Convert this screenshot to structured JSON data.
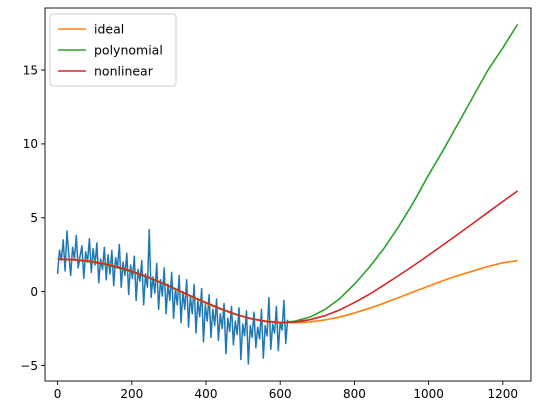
{
  "chart_data": {
    "type": "line",
    "title": "",
    "xlabel": "",
    "ylabel": "",
    "xlim": [
      -34,
      1276
    ],
    "ylim": [
      -6.05,
      19.2
    ],
    "xticks": [
      0,
      200,
      400,
      600,
      800,
      1000,
      1200
    ],
    "yticks": [
      -5,
      0,
      5,
      10,
      15
    ],
    "grid": false,
    "legend_position": "top-left",
    "noisy_series": {
      "color": "#1f77b4",
      "x_range": [
        0,
        620
      ],
      "values": [
        1.2,
        2.8,
        2.1,
        3.5,
        1.4,
        4.1,
        2.5,
        1.1,
        3.0,
        2.2,
        3.8,
        1.6,
        2.4,
        3.1,
        0.9,
        2.7,
        2.0,
        3.6,
        1.3,
        2.9,
        1.8,
        3.3,
        0.6,
        2.2,
        1.5,
        3.0,
        0.8,
        2.5,
        1.2,
        2.8,
        0.4,
        2.3,
        1.6,
        3.2,
        0.3,
        2.0,
        1.1,
        2.6,
        -0.2,
        1.8,
        0.9,
        2.4,
        -0.6,
        1.5,
        0.7,
        2.1,
        -0.9,
        1.2,
        0.3,
        4.2,
        -0.4,
        1.0,
        -0.1,
        1.9,
        -1.2,
        0.8,
        -0.3,
        1.6,
        -1.5,
        0.5,
        -0.6,
        1.3,
        -1.8,
        0.2,
        -0.9,
        1.1,
        -2.1,
        0.0,
        -1.2,
        0.8,
        -2.4,
        -0.3,
        -1.5,
        0.5,
        -2.8,
        -0.6,
        -1.7,
        0.2,
        -3.4,
        -0.9,
        -2.0,
        -0.2,
        -3.1,
        -1.2,
        -2.3,
        -0.5,
        -3.3,
        -1.5,
        -2.5,
        -0.8,
        -4.2,
        -1.8,
        -2.7,
        -1.0,
        -3.6,
        -2.0,
        -2.9,
        -1.1,
        -4.6,
        -2.2,
        -3.0,
        -1.3,
        -4.9,
        -2.3,
        -3.1,
        -1.4,
        -3.8,
        -2.4,
        -3.2,
        -1.2,
        -4.5,
        -2.3,
        -3.0,
        -0.4,
        -3.9,
        -2.2,
        -2.8,
        -1.0,
        -4.0,
        -2.1,
        -2.6,
        -0.6,
        -3.5,
        -1.9
      ]
    },
    "x": [
      0,
      40,
      80,
      120,
      160,
      200,
      240,
      280,
      320,
      360,
      400,
      440,
      480,
      520,
      560,
      600,
      640,
      680,
      720,
      760,
      800,
      840,
      880,
      920,
      960,
      1000,
      1040,
      1080,
      1120,
      1160,
      1200,
      1240
    ],
    "series": [
      {
        "name": "ideal",
        "color": "#ff7f0e",
        "values": [
          2.2,
          2.18,
          2.12,
          1.95,
          1.7,
          1.4,
          1.02,
          0.6,
          0.12,
          -0.35,
          -0.8,
          -1.2,
          -1.55,
          -1.82,
          -1.98,
          -2.08,
          -2.1,
          -2.05,
          -1.92,
          -1.72,
          -1.45,
          -1.13,
          -0.78,
          -0.4,
          -0.01,
          0.37,
          0.75,
          1.09,
          1.4,
          1.7,
          1.95,
          2.1
        ]
      },
      {
        "name": "polynomial",
        "color": "#2ca02c",
        "values": [
          2.2,
          2.15,
          2.05,
          1.87,
          1.63,
          1.33,
          0.98,
          0.58,
          0.14,
          -0.31,
          -0.75,
          -1.18,
          -1.55,
          -1.83,
          -2.02,
          -2.1,
          -2.0,
          -1.72,
          -1.22,
          -0.48,
          0.5,
          1.64,
          2.94,
          4.43,
          6.08,
          7.9,
          9.6,
          11.4,
          13.2,
          15.0,
          16.5,
          18.1
        ]
      },
      {
        "name": "nonlinear",
        "color": "#d62728",
        "values": [
          2.2,
          2.16,
          2.08,
          1.92,
          1.68,
          1.38,
          1.02,
          0.61,
          0.16,
          -0.3,
          -0.74,
          -1.16,
          -1.53,
          -1.82,
          -2.01,
          -2.1,
          -2.06,
          -1.9,
          -1.63,
          -1.24,
          -0.74,
          -0.18,
          0.45,
          1.1,
          1.77,
          2.47,
          3.18,
          3.9,
          4.63,
          5.37,
          6.1,
          6.82
        ]
      }
    ]
  }
}
